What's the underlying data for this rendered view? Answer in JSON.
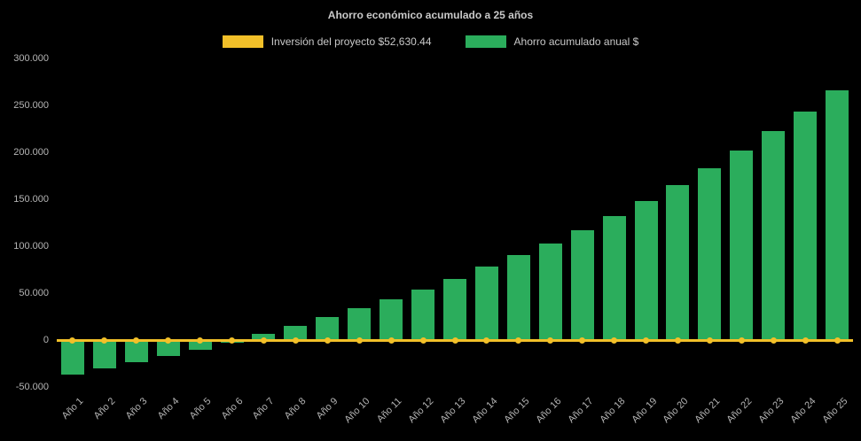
{
  "page": {
    "background": "#000000",
    "text_color": "#c9c9c9",
    "tick_color": "#b5b5b5"
  },
  "chart_data": {
    "type": "bar",
    "title": "Ahorro económico acumulado a 25 años",
    "categories": [
      "Año 1",
      "Año 2",
      "Año 3",
      "Año 4",
      "Año 5",
      "Año 6",
      "Año 7",
      "Año 8",
      "Año 9",
      "Año 10",
      "Año 11",
      "Año 12",
      "Año 13",
      "Año 14",
      "Año 15",
      "Año 16",
      "Año 17",
      "Año 18",
      "Año 19",
      "Año 20",
      "Año 21",
      "Año 22",
      "Año 23",
      "Año 24",
      "Año 25"
    ],
    "series": [
      {
        "name": "Inversión del proyecto $52,630.44",
        "type": "line",
        "color": "#F2C029",
        "values": [
          0,
          0,
          0,
          0,
          0,
          0,
          0,
          0,
          0,
          0,
          0,
          0,
          0,
          0,
          0,
          0,
          0,
          0,
          0,
          0,
          0,
          0,
          0,
          0,
          0
        ]
      },
      {
        "name": "Ahorro acumulado anual $",
        "type": "bar",
        "color": "#2BAD5C",
        "values": [
          -36500,
          -30000,
          -23500,
          -17000,
          -10000,
          -2500,
          7000,
          15500,
          24500,
          33500,
          43500,
          53500,
          65000,
          78000,
          90500,
          103000,
          117000,
          132000,
          148000,
          165000,
          183000,
          202000,
          222500,
          243500,
          266000
        ]
      }
    ],
    "ylim": [
      -50000,
      300000
    ],
    "grid": false,
    "legend_position": "top",
    "yticks": [
      {
        "value": 300000,
        "label": "300.000"
      },
      {
        "value": 250000,
        "label": "250.000"
      },
      {
        "value": 200000,
        "label": "200.000"
      },
      {
        "value": 150000,
        "label": "150.000"
      },
      {
        "value": 100000,
        "label": "100.000"
      },
      {
        "value": 50000,
        "label": "50.000"
      },
      {
        "value": 0,
        "label": "0"
      },
      {
        "value": -50000,
        "label": "-50.000"
      }
    ]
  }
}
